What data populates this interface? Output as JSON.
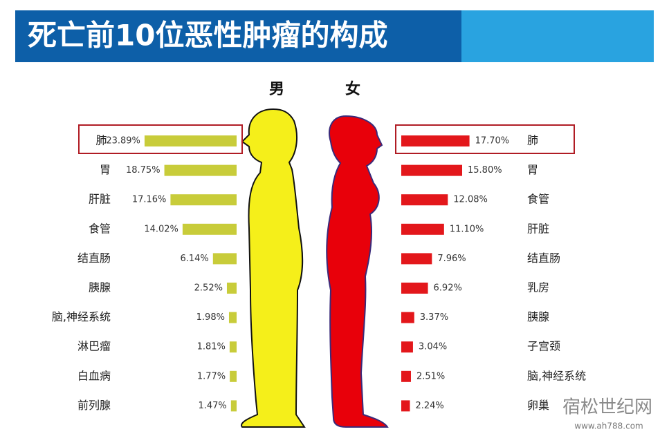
{
  "title": "死亡前10位恶性肿瘤的构成",
  "watermark": {
    "name": "宿松世纪网",
    "url": "www.ah788.com"
  },
  "chart_data": [
    {
      "type": "bar",
      "title": "男",
      "bar_direction": "left",
      "color": "#c8cc3a",
      "silhouette_color": "#f5ef1a",
      "categories": [
        "肺",
        "胃",
        "肝脏",
        "食管",
        "结直肠",
        "胰腺",
        "脑,神经系统",
        "淋巴瘤",
        "白血病",
        "前列腺"
      ],
      "values": [
        23.89,
        18.75,
        17.16,
        14.02,
        6.14,
        2.52,
        1.98,
        1.81,
        1.77,
        1.47
      ],
      "value_labels": [
        "23.89%",
        "18.75%",
        "17.16%",
        "14.02%",
        "6.14%",
        "2.52%",
        "1.98%",
        "1.81%",
        "1.77%",
        "1.47%"
      ]
    },
    {
      "type": "bar",
      "title": "女",
      "bar_direction": "right",
      "color": "#e3171b",
      "silhouette_color": "#e8000a",
      "categories": [
        "肺",
        "胃",
        "食管",
        "肝脏",
        "结直肠",
        "乳房",
        "胰腺",
        "子宫颈",
        "脑,神经系统",
        "卵巢"
      ],
      "values": [
        17.7,
        15.8,
        12.08,
        11.1,
        7.96,
        6.92,
        3.37,
        3.04,
        2.51,
        2.24
      ],
      "value_labels": [
        "17.70%",
        "15.80%",
        "12.08%",
        "11.10%",
        "7.96%",
        "6.92%",
        "3.37%",
        "3.04%",
        "2.51%",
        "2.24%"
      ]
    }
  ]
}
